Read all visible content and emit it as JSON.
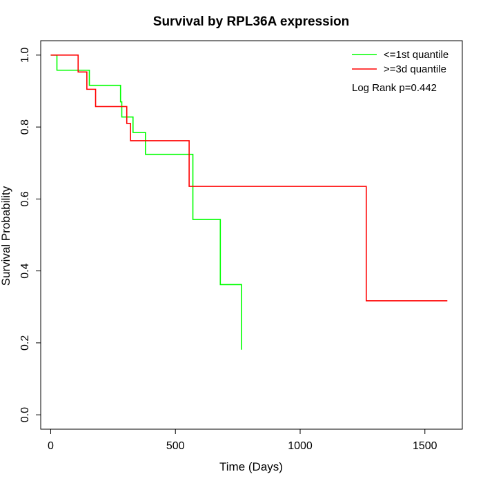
{
  "chart_data": {
    "type": "line",
    "title": "Survival by RPL36A expression",
    "xlabel": "Time (Days)",
    "ylabel": "Survival Probability",
    "xlim": [
      -40,
      1650
    ],
    "ylim": [
      -0.04,
      1.04
    ],
    "x_ticks": [
      0,
      500,
      1000,
      1500
    ],
    "y_ticks": [
      0.0,
      0.2,
      0.4,
      0.6,
      0.8,
      1.0
    ],
    "x_tick_labels": [
      "0",
      "500",
      "1000",
      "1500"
    ],
    "y_tick_labels": [
      "0.0",
      "0.2",
      "0.4",
      "0.6",
      "0.8",
      "1.0"
    ],
    "grid": false,
    "legend_position": "top-right",
    "annotation": "Log Rank p=0.442",
    "series": [
      {
        "name": "<=1st quantile",
        "color": "#00ff00",
        "step": true,
        "points": [
          [
            0,
            1.0
          ],
          [
            25,
            0.958
          ],
          [
            155,
            0.916
          ],
          [
            280,
            0.87
          ],
          [
            285,
            0.828
          ],
          [
            330,
            0.785
          ],
          [
            380,
            0.724
          ],
          [
            570,
            0.543
          ],
          [
            680,
            0.362
          ],
          [
            765,
            0.181
          ]
        ],
        "end_x": 765
      },
      {
        "name": ">=3d quantile",
        "color": "#ff0000",
        "step": true,
        "points": [
          [
            0,
            1.0
          ],
          [
            110,
            0.953
          ],
          [
            145,
            0.905
          ],
          [
            180,
            0.857
          ],
          [
            305,
            0.81
          ],
          [
            320,
            0.762
          ],
          [
            555,
            0.635
          ],
          [
            1265,
            0.317
          ]
        ],
        "end_x": 1590
      }
    ]
  }
}
